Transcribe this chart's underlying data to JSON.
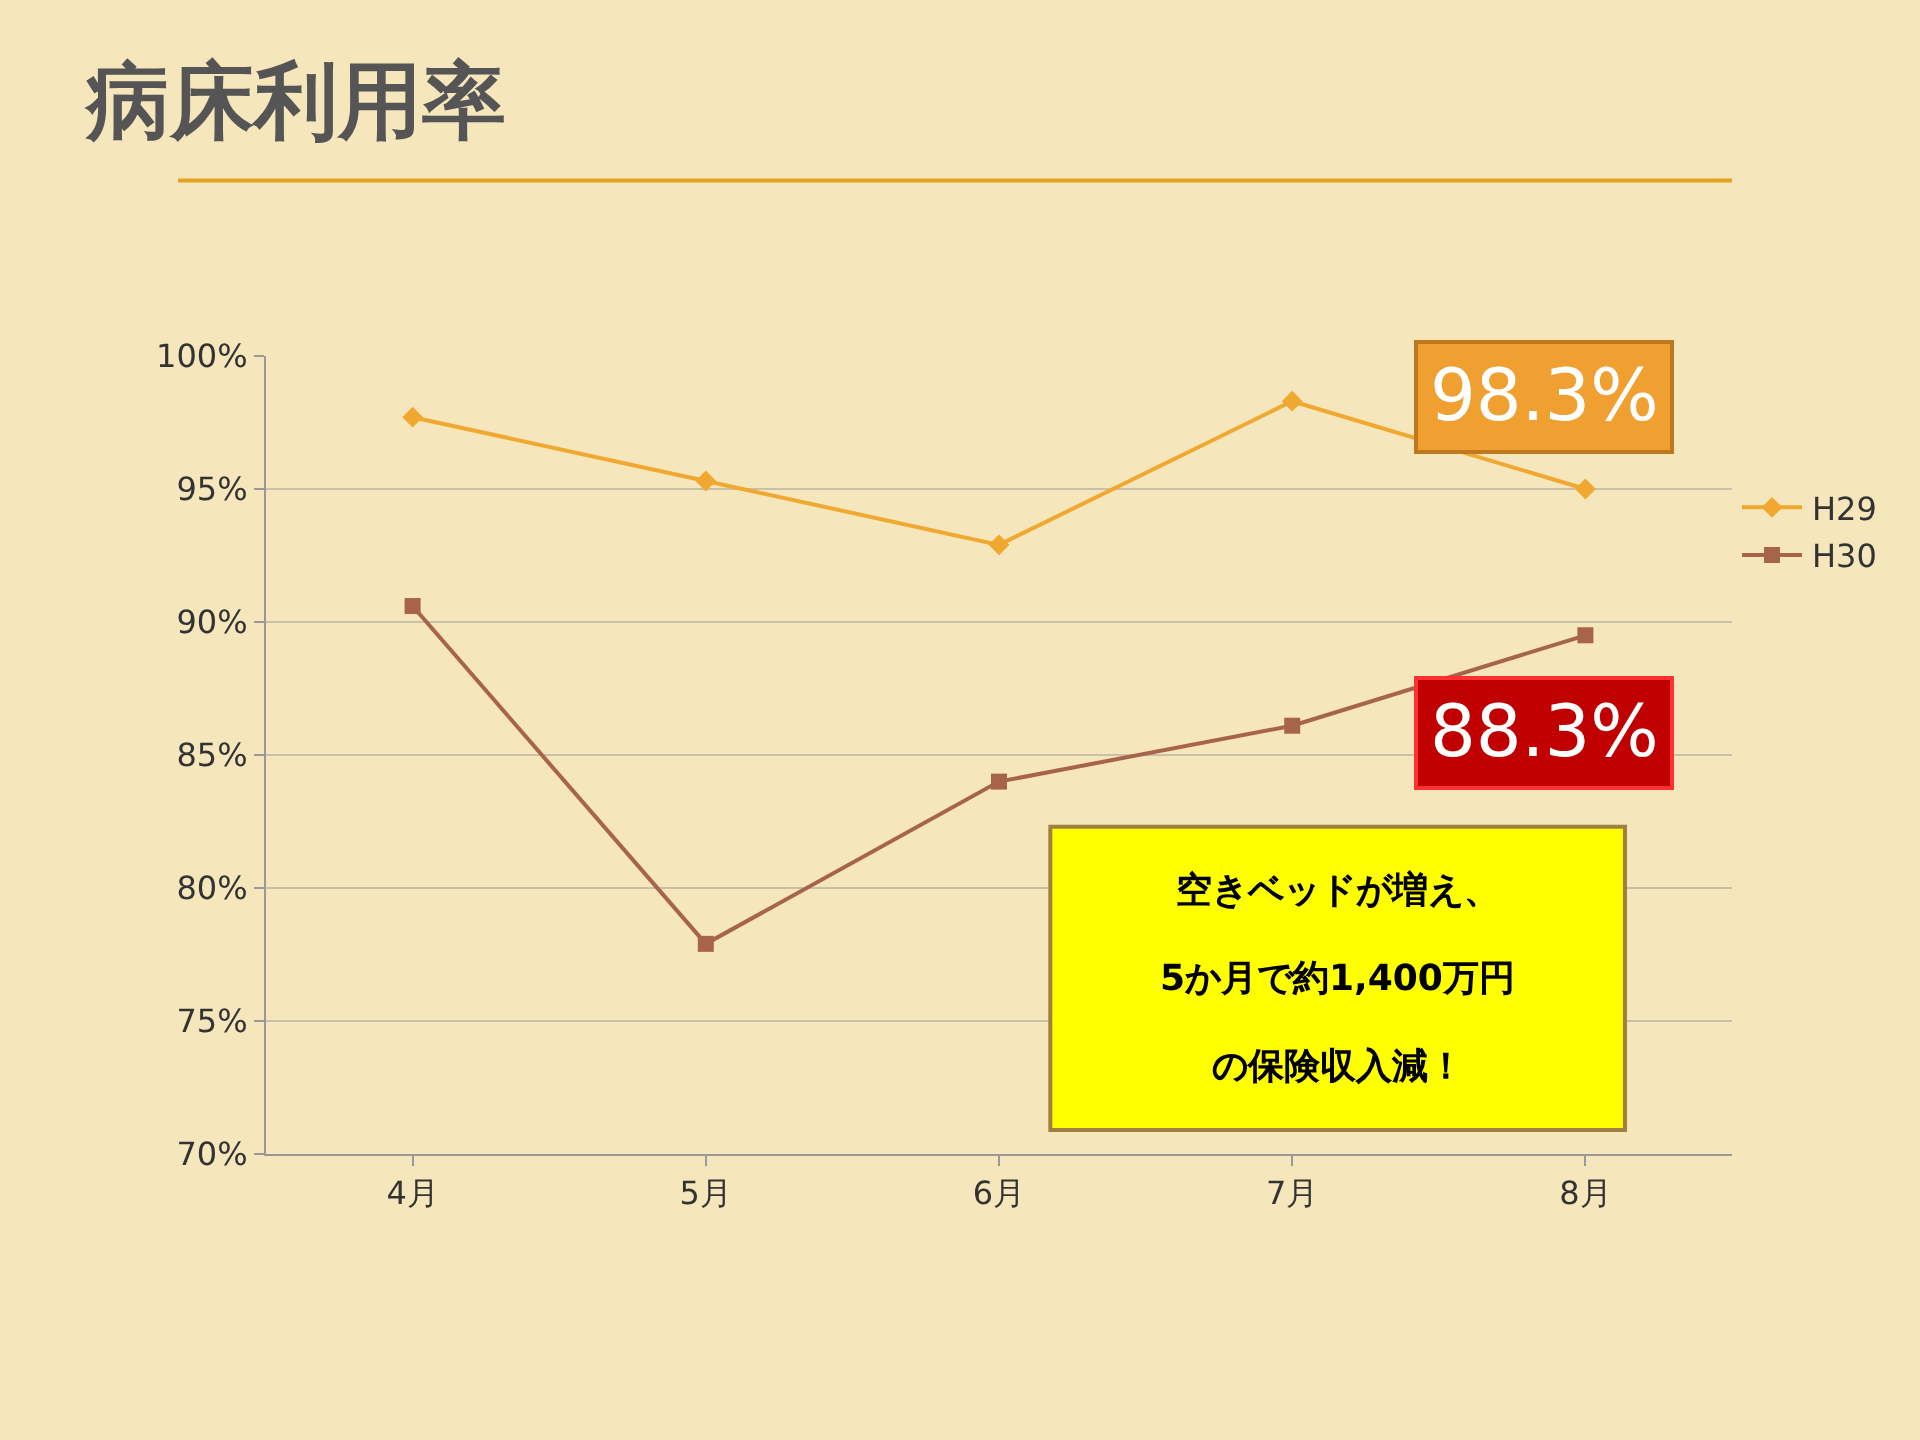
{
  "chart_data": {
    "type": "line",
    "title": "病床利用率",
    "categories": [
      "4月",
      "5月",
      "6月",
      "7月",
      "8月"
    ],
    "series": [
      {
        "name": "H29",
        "color": "#f0a830",
        "marker": "diamond",
        "values": [
          97.7,
          95.3,
          92.9,
          98.3,
          95.0
        ]
      },
      {
        "name": "H30",
        "color": "#a8644a",
        "marker": "square",
        "values": [
          90.6,
          77.9,
          84.0,
          86.1,
          89.5
        ]
      }
    ],
    "ylim": [
      70,
      100
    ],
    "yticks": [
      {
        "value": 70,
        "label": "70%"
      },
      {
        "value": 75,
        "label": "75%"
      },
      {
        "value": 80,
        "label": "80%"
      },
      {
        "value": 85,
        "label": "85%"
      },
      {
        "value": 90,
        "label": "90%"
      },
      {
        "value": 95,
        "label": "95%"
      },
      {
        "value": 100,
        "label": "100%"
      }
    ],
    "grid": "y",
    "legend": "right",
    "annotations": [
      "98.3%",
      "88.3%",
      "空きベッドが増え、",
      "5か月で約1,400万円",
      "の保険収入減！"
    ]
  }
}
